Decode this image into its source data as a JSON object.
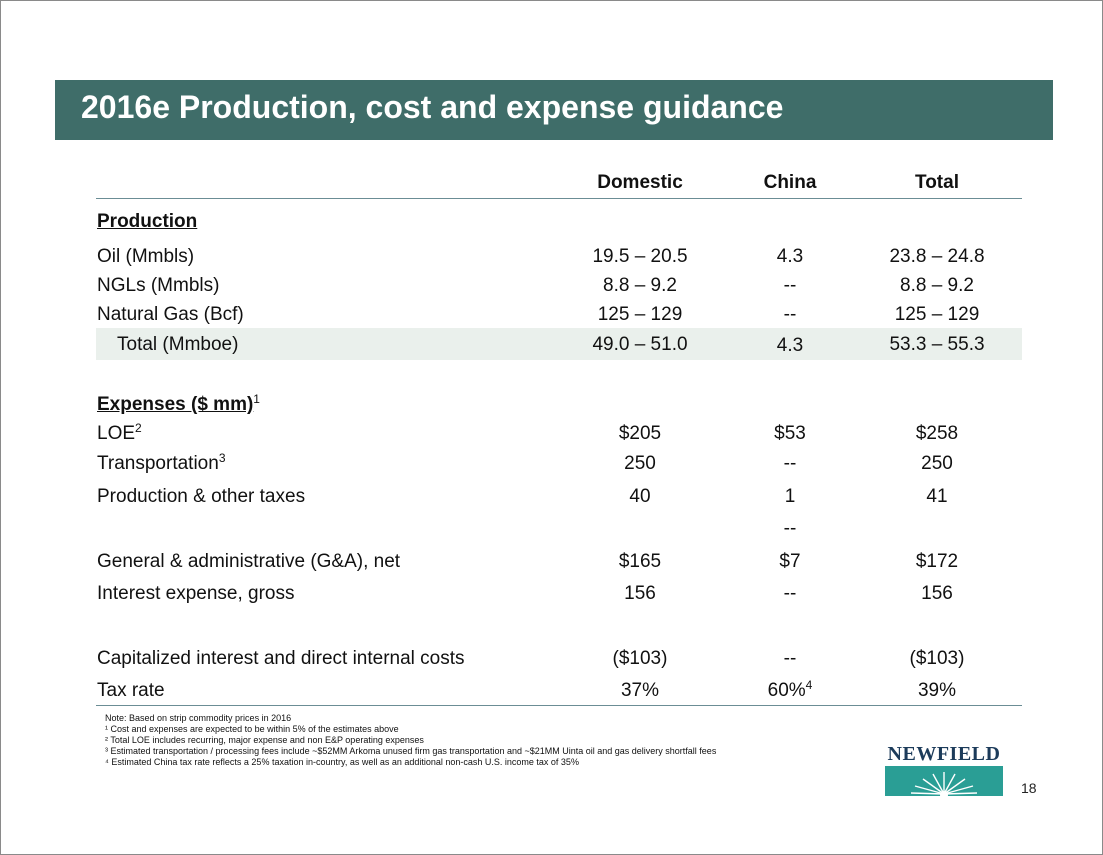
{
  "title": "2016e Production, cost and expense guidance",
  "columns": {
    "domestic": "Domestic",
    "china": "China",
    "total": "Total"
  },
  "production": {
    "heading": "Production",
    "rows": [
      {
        "label": "Oil (Mmbls)",
        "domestic": "19.5 – 20.5",
        "china": "4.3",
        "total": "23.8 – 24.8"
      },
      {
        "label": "NGLs (Mmbls)",
        "domestic": "8.8 – 9.2",
        "china": "--",
        "total": "8.8 – 9.2"
      },
      {
        "label": "Natural Gas (Bcf)",
        "domestic": "125 – 129",
        "china": "--",
        "total": "125 – 129"
      },
      {
        "label": "Total (Mmboe)",
        "domestic": "49.0 – 51.0",
        "china": "4.3",
        "total": "53.3 – 55.3"
      }
    ]
  },
  "expenses": {
    "heading": "Expenses ($ mm)",
    "heading_sup": "1",
    "rows": [
      {
        "label": "LOE",
        "sup": "2",
        "domestic": "$205",
        "china": "$53",
        "total": "$258"
      },
      {
        "label": "Transportation",
        "sup": "3",
        "domestic": "250",
        "china": "--",
        "total": "250"
      },
      {
        "label": "Production & other taxes",
        "domestic": "40",
        "china": "1",
        "total": "41"
      },
      {
        "label": "",
        "china": "--"
      },
      {
        "label": "General & administrative (G&A), net",
        "domestic": "$165",
        "china": "$7",
        "total": "$172"
      },
      {
        "label": "Interest expense, gross",
        "domestic": "156",
        "china": "--",
        "total": "156"
      },
      {
        "label": "Capitalized interest and direct internal costs",
        "domestic": "($103)",
        "china": "--",
        "total": "($103)"
      },
      {
        "label": "Tax rate",
        "domestic": "37%",
        "china": "60%",
        "china_sup": "4",
        "total": "39%"
      }
    ]
  },
  "notes": [
    "Note: Based on strip commodity prices in 2016",
    "¹ Cost and expenses are expected to be within 5% of the estimates above",
    "² Total LOE includes recurring, major expense and non E&P operating expenses",
    "³ Estimated transportation / processing fees include ~$52MM Arkoma unused firm gas transportation and ~$21MM Uinta oil and gas delivery shortfall fees",
    "⁴ Estimated China tax rate reflects a 25% taxation in-country, as well as an additional non-cash U.S. income tax of 35%"
  ],
  "logo": {
    "text": "NEWFIELD"
  },
  "page_number": "18",
  "colors": {
    "title_bar": "#3f6d69",
    "total_band": "#eaf0ec",
    "logo_teal": "#2a9e95",
    "logo_text": "#1c3b5a"
  }
}
